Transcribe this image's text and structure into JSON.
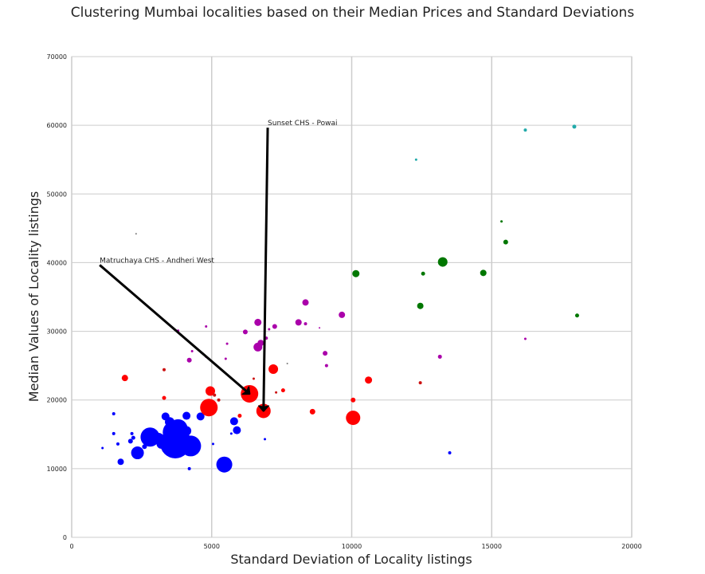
{
  "chart_data": {
    "type": "scatter",
    "title": "Clustering Mumbai localities based on their Median Prices and Standard Deviations",
    "xlabel": "Standard Deviation of Locality listings",
    "ylabel": "Median Values of Locality listings",
    "xlim": [
      0,
      20000
    ],
    "ylim": [
      0,
      70000
    ],
    "xticks": [
      0,
      5000,
      10000,
      15000,
      20000
    ],
    "yticks": [
      0,
      10000,
      20000,
      30000,
      40000,
      50000,
      60000,
      70000
    ],
    "grid": true,
    "legend": "none",
    "colors": {
      "blue": "#0000ff",
      "red": "#ff0000",
      "darkred": "#cc1111",
      "magenta": "#aa00aa",
      "green": "#007700",
      "teal": "#22aaaa",
      "grey": "#777777"
    },
    "points": [
      {
        "x": 1100,
        "y": 13000,
        "s": 1.5,
        "c": "blue"
      },
      {
        "x": 1500,
        "y": 15100,
        "s": 2,
        "c": "blue"
      },
      {
        "x": 1500,
        "y": 18000,
        "s": 2,
        "c": "blue"
      },
      {
        "x": 1650,
        "y": 13600,
        "s": 2,
        "c": "blue"
      },
      {
        "x": 1750,
        "y": 11000,
        "s": 4,
        "c": "blue"
      },
      {
        "x": 2100,
        "y": 14000,
        "s": 3,
        "c": "blue"
      },
      {
        "x": 2150,
        "y": 15100,
        "s": 2,
        "c": "blue"
      },
      {
        "x": 2200,
        "y": 14500,
        "s": 2.5,
        "c": "blue"
      },
      {
        "x": 2350,
        "y": 12300,
        "s": 8,
        "c": "blue"
      },
      {
        "x": 2600,
        "y": 13200,
        "s": 3,
        "c": "blue"
      },
      {
        "x": 2800,
        "y": 14600,
        "s": 12,
        "c": "blue"
      },
      {
        "x": 3100,
        "y": 14400,
        "s": 7,
        "c": "blue"
      },
      {
        "x": 3200,
        "y": 13600,
        "s": 6,
        "c": "blue"
      },
      {
        "x": 3350,
        "y": 17600,
        "s": 5,
        "c": "blue"
      },
      {
        "x": 3500,
        "y": 16800,
        "s": 6,
        "c": "blue"
      },
      {
        "x": 3650,
        "y": 15300,
        "s": 14,
        "c": "blue"
      },
      {
        "x": 3700,
        "y": 13700,
        "s": 19,
        "c": "blue"
      },
      {
        "x": 3800,
        "y": 15800,
        "s": 12,
        "c": "blue"
      },
      {
        "x": 4000,
        "y": 14400,
        "s": 8,
        "c": "blue"
      },
      {
        "x": 4100,
        "y": 15500,
        "s": 6,
        "c": "blue"
      },
      {
        "x": 4100,
        "y": 17700,
        "s": 5,
        "c": "blue"
      },
      {
        "x": 4250,
        "y": 13300,
        "s": 13,
        "c": "blue"
      },
      {
        "x": 4200,
        "y": 10000,
        "s": 2,
        "c": "blue"
      },
      {
        "x": 4600,
        "y": 17600,
        "s": 5,
        "c": "blue"
      },
      {
        "x": 5050,
        "y": 13600,
        "s": 1.5,
        "c": "blue"
      },
      {
        "x": 5450,
        "y": 10600,
        "s": 10,
        "c": "blue"
      },
      {
        "x": 5700,
        "y": 15100,
        "s": 1.5,
        "c": "blue"
      },
      {
        "x": 5800,
        "y": 16900,
        "s": 5,
        "c": "blue"
      },
      {
        "x": 5900,
        "y": 15600,
        "s": 5,
        "c": "blue"
      },
      {
        "x": 6900,
        "y": 14300,
        "s": 1.5,
        "c": "blue"
      },
      {
        "x": 13500,
        "y": 12300,
        "s": 2,
        "c": "blue"
      },
      {
        "x": 1900,
        "y": 23200,
        "s": 4,
        "c": "red"
      },
      {
        "x": 3300,
        "y": 24400,
        "s": 2,
        "c": "darkred"
      },
      {
        "x": 3300,
        "y": 20300,
        "s": 2.5,
        "c": "red"
      },
      {
        "x": 4900,
        "y": 18900,
        "s": 11,
        "c": "red"
      },
      {
        "x": 4950,
        "y": 21300,
        "s": 6,
        "c": "red"
      },
      {
        "x": 5100,
        "y": 20700,
        "s": 2,
        "c": "darkred"
      },
      {
        "x": 5250,
        "y": 20000,
        "s": 2,
        "c": "darkred"
      },
      {
        "x": 6000,
        "y": 17700,
        "s": 2.5,
        "c": "red"
      },
      {
        "x": 6350,
        "y": 20900,
        "s": 11,
        "c": "red"
      },
      {
        "x": 6500,
        "y": 23100,
        "s": 1.5,
        "c": "darkred"
      },
      {
        "x": 6850,
        "y": 18400,
        "s": 9,
        "c": "red"
      },
      {
        "x": 7200,
        "y": 24500,
        "s": 6,
        "c": "red"
      },
      {
        "x": 7300,
        "y": 21100,
        "s": 1.5,
        "c": "darkred"
      },
      {
        "x": 7550,
        "y": 21400,
        "s": 2.5,
        "c": "red"
      },
      {
        "x": 8600,
        "y": 18300,
        "s": 3.5,
        "c": "red"
      },
      {
        "x": 10050,
        "y": 20000,
        "s": 3,
        "c": "red"
      },
      {
        "x": 10050,
        "y": 17400,
        "s": 9,
        "c": "red"
      },
      {
        "x": 10600,
        "y": 22900,
        "s": 4.5,
        "c": "red"
      },
      {
        "x": 12450,
        "y": 22500,
        "s": 2,
        "c": "darkred"
      },
      {
        "x": 3800,
        "y": 30100,
        "s": 1.5,
        "c": "magenta"
      },
      {
        "x": 4200,
        "y": 25800,
        "s": 3,
        "c": "magenta"
      },
      {
        "x": 4300,
        "y": 27100,
        "s": 1.5,
        "c": "magenta"
      },
      {
        "x": 4800,
        "y": 30700,
        "s": 1.5,
        "c": "magenta"
      },
      {
        "x": 4800,
        "y": 26300,
        "s": 1.5,
        "c": "magenta"
      },
      {
        "x": 5500,
        "y": 26000,
        "s": 1.5,
        "c": "magenta"
      },
      {
        "x": 5550,
        "y": 28200,
        "s": 1.5,
        "c": "magenta"
      },
      {
        "x": 6200,
        "y": 29900,
        "s": 3,
        "c": "magenta"
      },
      {
        "x": 6650,
        "y": 31300,
        "s": 4.5,
        "c": "magenta"
      },
      {
        "x": 6650,
        "y": 27700,
        "s": 5.5,
        "c": "magenta"
      },
      {
        "x": 6750,
        "y": 28300,
        "s": 4,
        "c": "magenta"
      },
      {
        "x": 6950,
        "y": 29000,
        "s": 2,
        "c": "magenta"
      },
      {
        "x": 7050,
        "y": 30300,
        "s": 1.5,
        "c": "magenta"
      },
      {
        "x": 7250,
        "y": 30700,
        "s": 3,
        "c": "magenta"
      },
      {
        "x": 8100,
        "y": 31300,
        "s": 4,
        "c": "magenta"
      },
      {
        "x": 8350,
        "y": 34200,
        "s": 4,
        "c": "magenta"
      },
      {
        "x": 8350,
        "y": 31100,
        "s": 2,
        "c": "magenta"
      },
      {
        "x": 8850,
        "y": 30500,
        "s": 1,
        "c": "magenta"
      },
      {
        "x": 9050,
        "y": 26800,
        "s": 3,
        "c": "magenta"
      },
      {
        "x": 9100,
        "y": 25000,
        "s": 2,
        "c": "magenta"
      },
      {
        "x": 9650,
        "y": 32400,
        "s": 4,
        "c": "magenta"
      },
      {
        "x": 13150,
        "y": 26300,
        "s": 2.5,
        "c": "magenta"
      },
      {
        "x": 16200,
        "y": 28900,
        "s": 1.5,
        "c": "magenta"
      },
      {
        "x": 10150,
        "y": 38400,
        "s": 4.5,
        "c": "green"
      },
      {
        "x": 12450,
        "y": 33700,
        "s": 4,
        "c": "green"
      },
      {
        "x": 12550,
        "y": 38400,
        "s": 2.5,
        "c": "green"
      },
      {
        "x": 13250,
        "y": 40100,
        "s": 6,
        "c": "green"
      },
      {
        "x": 14700,
        "y": 38500,
        "s": 4,
        "c": "green"
      },
      {
        "x": 15350,
        "y": 46000,
        "s": 1.5,
        "c": "green"
      },
      {
        "x": 15500,
        "y": 43000,
        "s": 3,
        "c": "green"
      },
      {
        "x": 18050,
        "y": 32300,
        "s": 2.5,
        "c": "green"
      },
      {
        "x": 12300,
        "y": 55000,
        "s": 1.5,
        "c": "teal"
      },
      {
        "x": 16200,
        "y": 59300,
        "s": 2,
        "c": "teal"
      },
      {
        "x": 17950,
        "y": 59800,
        "s": 2.5,
        "c": "teal"
      },
      {
        "x": 2300,
        "y": 44200,
        "s": 1,
        "c": "grey"
      },
      {
        "x": 7700,
        "y": 25300,
        "s": 1,
        "c": "grey"
      }
    ],
    "annotations": [
      {
        "text": "Sunset CHS - Powai",
        "text_x": 7000,
        "text_y": 60000,
        "point_x": 6850,
        "point_y": 18400
      },
      {
        "text": "Matruchaya CHS - Andheri West",
        "text_x": 1000,
        "text_y": 40000,
        "point_x": 6350,
        "point_y": 20900
      }
    ]
  }
}
